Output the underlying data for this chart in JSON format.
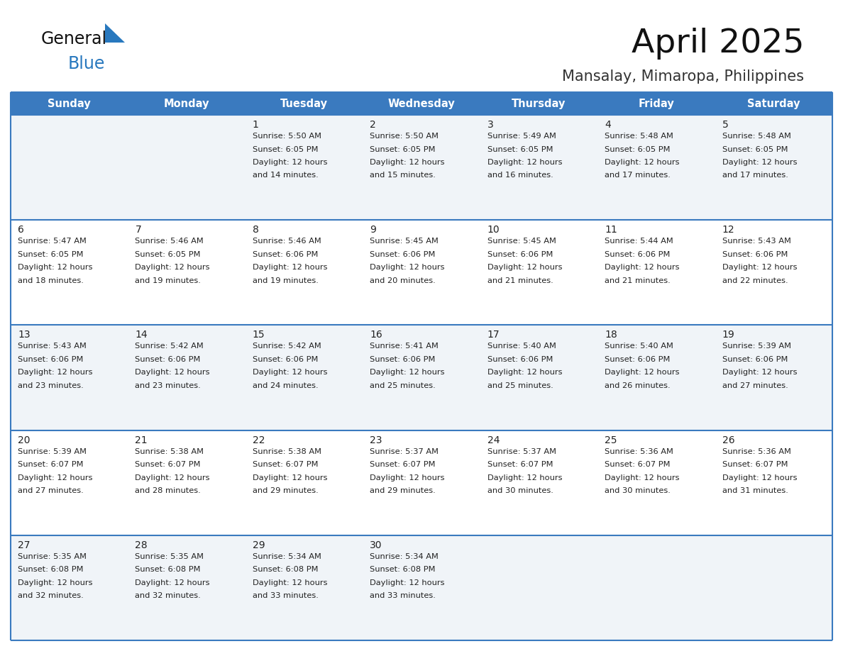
{
  "title": "April 2025",
  "subtitle": "Mansalay, Mimaropa, Philippines",
  "header_bg_color": "#3a7abf",
  "header_text_color": "#ffffff",
  "row_bg_odd": "#f0f4f8",
  "row_bg_even": "#ffffff",
  "border_color": "#3a7abf",
  "text_color": "#222222",
  "logo_general_color": "#111111",
  "logo_blue_color": "#2878be",
  "logo_triangle_color": "#2878be",
  "days_of_week": [
    "Sunday",
    "Monday",
    "Tuesday",
    "Wednesday",
    "Thursday",
    "Friday",
    "Saturday"
  ],
  "calendar_data": [
    [
      {
        "day": "",
        "sunrise": "",
        "sunset": "",
        "daylight_line1": "",
        "daylight_line2": ""
      },
      {
        "day": "",
        "sunrise": "",
        "sunset": "",
        "daylight_line1": "",
        "daylight_line2": ""
      },
      {
        "day": "1",
        "sunrise": "5:50 AM",
        "sunset": "6:05 PM",
        "daylight_line1": "12 hours",
        "daylight_line2": "and 14 minutes."
      },
      {
        "day": "2",
        "sunrise": "5:50 AM",
        "sunset": "6:05 PM",
        "daylight_line1": "12 hours",
        "daylight_line2": "and 15 minutes."
      },
      {
        "day": "3",
        "sunrise": "5:49 AM",
        "sunset": "6:05 PM",
        "daylight_line1": "12 hours",
        "daylight_line2": "and 16 minutes."
      },
      {
        "day": "4",
        "sunrise": "5:48 AM",
        "sunset": "6:05 PM",
        "daylight_line1": "12 hours",
        "daylight_line2": "and 17 minutes."
      },
      {
        "day": "5",
        "sunrise": "5:48 AM",
        "sunset": "6:05 PM",
        "daylight_line1": "12 hours",
        "daylight_line2": "and 17 minutes."
      }
    ],
    [
      {
        "day": "6",
        "sunrise": "5:47 AM",
        "sunset": "6:05 PM",
        "daylight_line1": "12 hours",
        "daylight_line2": "and 18 minutes."
      },
      {
        "day": "7",
        "sunrise": "5:46 AM",
        "sunset": "6:05 PM",
        "daylight_line1": "12 hours",
        "daylight_line2": "and 19 minutes."
      },
      {
        "day": "8",
        "sunrise": "5:46 AM",
        "sunset": "6:06 PM",
        "daylight_line1": "12 hours",
        "daylight_line2": "and 19 minutes."
      },
      {
        "day": "9",
        "sunrise": "5:45 AM",
        "sunset": "6:06 PM",
        "daylight_line1": "12 hours",
        "daylight_line2": "and 20 minutes."
      },
      {
        "day": "10",
        "sunrise": "5:45 AM",
        "sunset": "6:06 PM",
        "daylight_line1": "12 hours",
        "daylight_line2": "and 21 minutes."
      },
      {
        "day": "11",
        "sunrise": "5:44 AM",
        "sunset": "6:06 PM",
        "daylight_line1": "12 hours",
        "daylight_line2": "and 21 minutes."
      },
      {
        "day": "12",
        "sunrise": "5:43 AM",
        "sunset": "6:06 PM",
        "daylight_line1": "12 hours",
        "daylight_line2": "and 22 minutes."
      }
    ],
    [
      {
        "day": "13",
        "sunrise": "5:43 AM",
        "sunset": "6:06 PM",
        "daylight_line1": "12 hours",
        "daylight_line2": "and 23 minutes."
      },
      {
        "day": "14",
        "sunrise": "5:42 AM",
        "sunset": "6:06 PM",
        "daylight_line1": "12 hours",
        "daylight_line2": "and 23 minutes."
      },
      {
        "day": "15",
        "sunrise": "5:42 AM",
        "sunset": "6:06 PM",
        "daylight_line1": "12 hours",
        "daylight_line2": "and 24 minutes."
      },
      {
        "day": "16",
        "sunrise": "5:41 AM",
        "sunset": "6:06 PM",
        "daylight_line1": "12 hours",
        "daylight_line2": "and 25 minutes."
      },
      {
        "day": "17",
        "sunrise": "5:40 AM",
        "sunset": "6:06 PM",
        "daylight_line1": "12 hours",
        "daylight_line2": "and 25 minutes."
      },
      {
        "day": "18",
        "sunrise": "5:40 AM",
        "sunset": "6:06 PM",
        "daylight_line1": "12 hours",
        "daylight_line2": "and 26 minutes."
      },
      {
        "day": "19",
        "sunrise": "5:39 AM",
        "sunset": "6:06 PM",
        "daylight_line1": "12 hours",
        "daylight_line2": "and 27 minutes."
      }
    ],
    [
      {
        "day": "20",
        "sunrise": "5:39 AM",
        "sunset": "6:07 PM",
        "daylight_line1": "12 hours",
        "daylight_line2": "and 27 minutes."
      },
      {
        "day": "21",
        "sunrise": "5:38 AM",
        "sunset": "6:07 PM",
        "daylight_line1": "12 hours",
        "daylight_line2": "and 28 minutes."
      },
      {
        "day": "22",
        "sunrise": "5:38 AM",
        "sunset": "6:07 PM",
        "daylight_line1": "12 hours",
        "daylight_line2": "and 29 minutes."
      },
      {
        "day": "23",
        "sunrise": "5:37 AM",
        "sunset": "6:07 PM",
        "daylight_line1": "12 hours",
        "daylight_line2": "and 29 minutes."
      },
      {
        "day": "24",
        "sunrise": "5:37 AM",
        "sunset": "6:07 PM",
        "daylight_line1": "12 hours",
        "daylight_line2": "and 30 minutes."
      },
      {
        "day": "25",
        "sunrise": "5:36 AM",
        "sunset": "6:07 PM",
        "daylight_line1": "12 hours",
        "daylight_line2": "and 30 minutes."
      },
      {
        "day": "26",
        "sunrise": "5:36 AM",
        "sunset": "6:07 PM",
        "daylight_line1": "12 hours",
        "daylight_line2": "and 31 minutes."
      }
    ],
    [
      {
        "day": "27",
        "sunrise": "5:35 AM",
        "sunset": "6:08 PM",
        "daylight_line1": "12 hours",
        "daylight_line2": "and 32 minutes."
      },
      {
        "day": "28",
        "sunrise": "5:35 AM",
        "sunset": "6:08 PM",
        "daylight_line1": "12 hours",
        "daylight_line2": "and 32 minutes."
      },
      {
        "day": "29",
        "sunrise": "5:34 AM",
        "sunset": "6:08 PM",
        "daylight_line1": "12 hours",
        "daylight_line2": "and 33 minutes."
      },
      {
        "day": "30",
        "sunrise": "5:34 AM",
        "sunset": "6:08 PM",
        "daylight_line1": "12 hours",
        "daylight_line2": "and 33 minutes."
      },
      {
        "day": "",
        "sunrise": "",
        "sunset": "",
        "daylight_line1": "",
        "daylight_line2": ""
      },
      {
        "day": "",
        "sunrise": "",
        "sunset": "",
        "daylight_line1": "",
        "daylight_line2": ""
      },
      {
        "day": "",
        "sunrise": "",
        "sunset": "",
        "daylight_line1": "",
        "daylight_line2": ""
      }
    ]
  ]
}
